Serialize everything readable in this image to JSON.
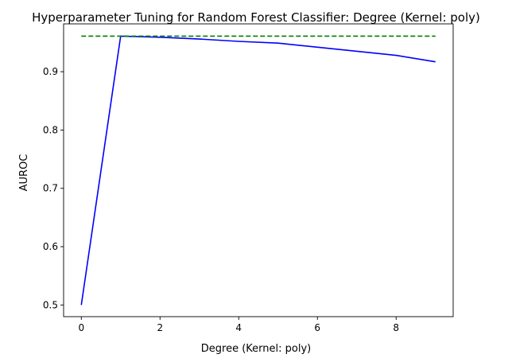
{
  "chart_data": {
    "type": "line",
    "title": "Hyperparameter Tuning for Random Forest Classifier: Degree (Kernel: poly)",
    "xlabel": "Degree (Kernel: poly)",
    "ylabel": "AUROC",
    "xlim": [
      -0.45,
      9.45
    ],
    "ylim": [
      0.48,
      0.982
    ],
    "xticks": [
      0,
      2,
      4,
      6,
      8
    ],
    "xtick_labels": [
      "0",
      "2",
      "4",
      "6",
      "8"
    ],
    "yticks": [
      0.5,
      0.6,
      0.7,
      0.8,
      0.9
    ],
    "ytick_labels": [
      "0.5",
      "0.6",
      "0.7",
      "0.8",
      "0.9"
    ],
    "grid": false,
    "series": [
      {
        "color": "#0000ff",
        "style": "solid",
        "x": [
          0,
          1,
          2,
          3,
          4,
          5,
          6,
          7,
          8,
          9
        ],
        "y": [
          0.5,
          0.961,
          0.959,
          0.956,
          0.952,
          0.949,
          0.942,
          0.935,
          0.928,
          0.917
        ]
      },
      {
        "color": "#008000",
        "style": "dashed",
        "x": [
          0,
          9
        ],
        "y": [
          0.961,
          0.961
        ]
      }
    ]
  }
}
